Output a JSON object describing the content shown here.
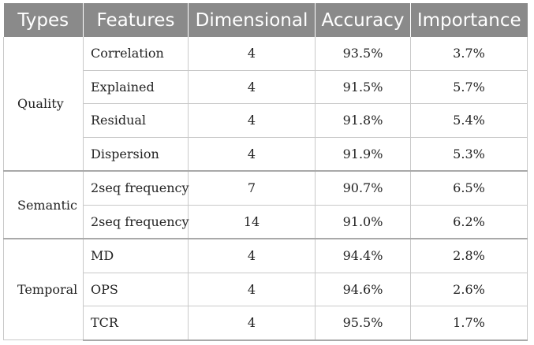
{
  "headers": [
    "Types",
    "Features",
    "Dimensional",
    "Accuracy",
    "Importance"
  ],
  "groups": [
    {
      "type": "Quality",
      "rows": [
        {
          "feature": "Correlation",
          "dimensional": "4",
          "accuracy": "93.5%",
          "importance": "3.7%"
        },
        {
          "feature": "Explained",
          "dimensional": "4",
          "accuracy": "91.5%",
          "importance": "5.7%"
        },
        {
          "feature": "Residual",
          "dimensional": "4",
          "accuracy": "91.8%",
          "importance": "5.4%"
        },
        {
          "feature": "Dispersion",
          "dimensional": "4",
          "accuracy": "91.9%",
          "importance": "5.3%"
        }
      ]
    },
    {
      "type": "Semantic",
      "rows": [
        {
          "feature": "2seq frequency",
          "dimensional": "7",
          "accuracy": "90.7%",
          "importance": "6.5%"
        },
        {
          "feature": "2seq frequency",
          "dimensional": "14",
          "accuracy": "91.0%",
          "importance": "6.2%"
        }
      ]
    },
    {
      "type": "Temporal",
      "rows": [
        {
          "feature": "MD",
          "dimensional": "4",
          "accuracy": "94.4%",
          "importance": "2.8%"
        },
        {
          "feature": "OPS",
          "dimensional": "4",
          "accuracy": "94.6%",
          "importance": "2.6%"
        },
        {
          "feature": "TCR",
          "dimensional": "4",
          "accuracy": "95.5%",
          "importance": "1.7%"
        }
      ]
    }
  ]
}
